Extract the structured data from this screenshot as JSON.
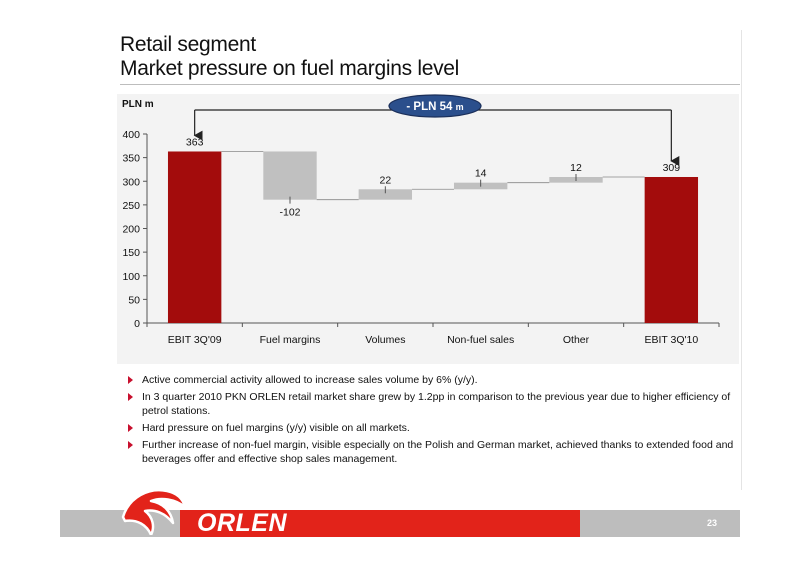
{
  "slide": {
    "title_line1": "Retail segment",
    "title_line2": "Market pressure on fuel margins level",
    "page_number": "23"
  },
  "brand": {
    "name": "ORLEN",
    "logo_icon": "orlen-eagle-icon",
    "color_red": "#e2231a",
    "color_grey": "#bdbdbd"
  },
  "chart_data": {
    "type": "waterfall",
    "unit_label": "PLN m",
    "categories": [
      "EBIT 3Q'09",
      "Fuel margins",
      "Volumes",
      "Non-fuel sales",
      "Other",
      "EBIT 3Q'10"
    ],
    "values": [
      363,
      -102,
      22,
      14,
      12,
      309
    ],
    "value_labels": [
      "363",
      "-102",
      "22",
      "14",
      "12",
      "309"
    ],
    "kinds": [
      "total",
      "delta",
      "delta",
      "delta",
      "delta",
      "total"
    ],
    "ylim": [
      0,
      400
    ],
    "yticks": [
      0,
      50,
      100,
      150,
      200,
      250,
      300,
      350,
      400
    ],
    "ytick_labels": [
      "0",
      "50",
      "100",
      "150",
      "200",
      "250",
      "300",
      "350",
      "400"
    ],
    "grid": false,
    "colors": {
      "total": "#a30c0c",
      "delta": "#c0c0c0"
    },
    "annotation": {
      "text_main": "- PLN 54",
      "text_unit": "m",
      "from": 0,
      "to": 5
    }
  },
  "bullets": [
    "Active commercial activity allowed to increase sales volume by 6% (y/y).",
    "In 3 quarter 2010 PKN ORLEN retail market share grew by 1.2pp in comparison to the previous year due to higher efficiency of petrol stations.",
    "Hard pressure on fuel margins (y/y) visible on all markets.",
    "Further increase of non-fuel margin, visible especially on the Polish and German market, achieved thanks to extended food and beverages offer and effective shop sales management."
  ]
}
